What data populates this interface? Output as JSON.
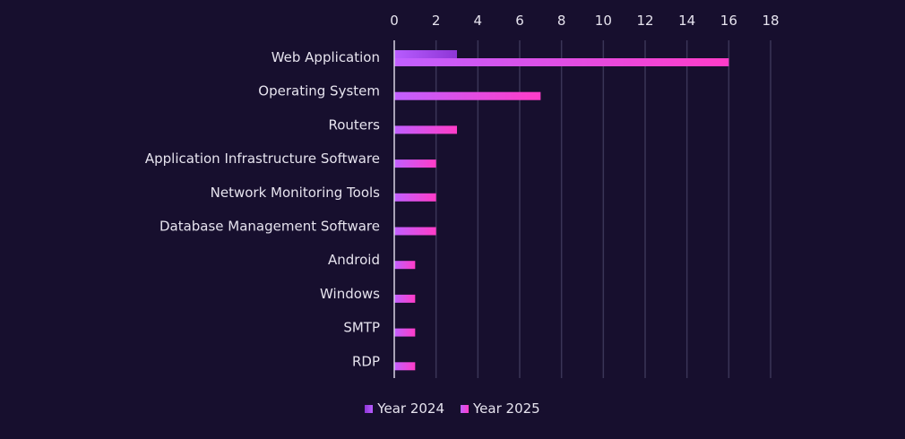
{
  "chart_data": {
    "type": "bar",
    "orientation": "horizontal",
    "title": "",
    "xlabel": "",
    "ylabel": "",
    "xlim": [
      0,
      18
    ],
    "x_ticks": [
      0,
      2,
      4,
      6,
      8,
      10,
      12,
      14,
      16,
      18
    ],
    "x_axis_position": "top",
    "grid": true,
    "legend_position": "bottom",
    "categories": [
      "Web Application",
      "Operating System",
      "Routers",
      "Application Infrastructure Software",
      "Network Monitoring Tools",
      "Database Management Software",
      "Android",
      "Windows",
      "SMTP",
      "RDP"
    ],
    "series": [
      {
        "name": "Year 2024",
        "values": [
          3,
          0,
          0,
          0,
          0,
          0,
          0,
          0,
          0,
          0
        ]
      },
      {
        "name": "Year 2025",
        "values": [
          16,
          7,
          3,
          2,
          2,
          2,
          1,
          1,
          1,
          1
        ]
      }
    ]
  },
  "colors": {
    "background": "#170f2e",
    "gridline": "#3a3557",
    "axis_line": "#d8d4e4",
    "text": "#e6e3ee",
    "series_2024_start": "#b85cff",
    "series_2024_end": "#8e36d6",
    "series_2025_start": "#c060ff",
    "series_2025_end": "#ff3cc8"
  },
  "legend": {
    "items": [
      {
        "label": "Year 2024"
      },
      {
        "label": "Year 2025"
      }
    ]
  }
}
